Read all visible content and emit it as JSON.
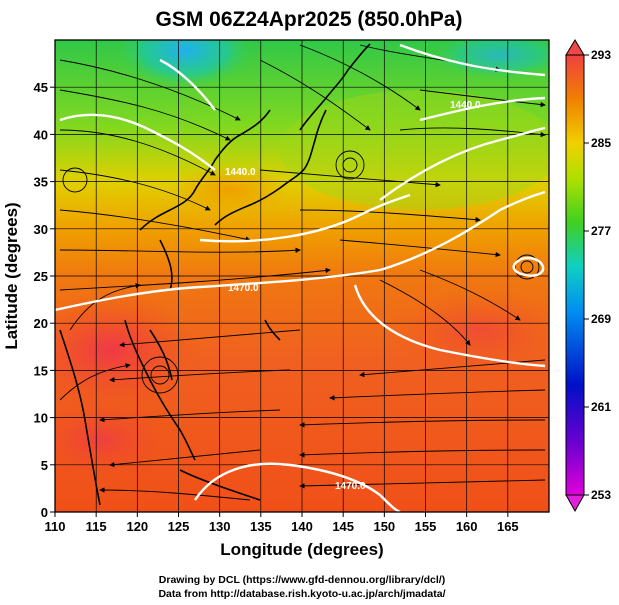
{
  "title": "GSM 06Z24Apr2025 (850.0hPa)",
  "xlabel": "Longitude (degrees)",
  "ylabel": "Latitude  (degrees)",
  "credits": {
    "line1": "Drawing by DCL (https://www.gfd-dennou.org/library/dcl/)",
    "line2": "Data from http://database.rish.kyoto-u.ac.jp/arch/jmadata/"
  },
  "chart_data": {
    "type": "heatmap",
    "title": "GSM 06Z24Apr2025 (850.0hPa)",
    "xlabel": "Longitude (degrees)",
    "ylabel": "Latitude  (degrees)",
    "xlim": [
      110,
      170
    ],
    "ylim": [
      0,
      50
    ],
    "x_ticks": [
      "110",
      "115",
      "120",
      "125",
      "130",
      "135",
      "140",
      "145",
      "150",
      "155",
      "160",
      "165"
    ],
    "y_ticks": [
      "0",
      "5",
      "10",
      "15",
      "20",
      "25",
      "30",
      "35",
      "40",
      "45"
    ],
    "grid": true,
    "colorbar": {
      "min": 253,
      "max": 293,
      "ticks": [
        "293",
        "285",
        "277",
        "269",
        "261",
        "253"
      ],
      "position": "right"
    },
    "contour_labels": [
      "1440.0",
      "1440.0",
      "1470.0",
      "1470.0"
    ],
    "fields": [
      "temperature (K, shading)",
      "geopotential height (white contours)",
      "wind (streamlines)"
    ]
  }
}
